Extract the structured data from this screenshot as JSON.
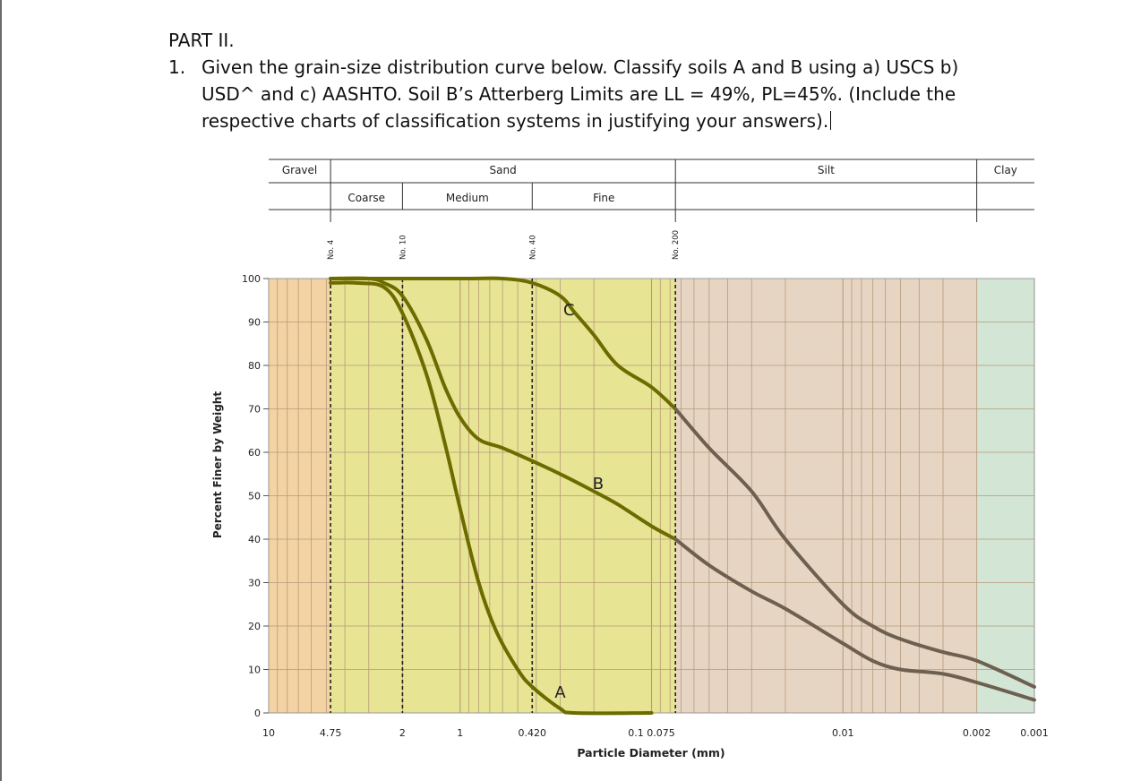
{
  "question": {
    "part": "PART II.",
    "number": "1.",
    "lines": [
      "Given the grain-size distribution curve below. Classify soils A and B using a) USCS b)",
      "USD^ and c) AASHTO. Soil B’s Atterberg Limits are LL = 49%, PL=45%. (Include the",
      "respective charts of classification systems in justifying your answers)."
    ]
  },
  "chart_data": {
    "type": "line",
    "title": "",
    "xlabel": "Particle Diameter (mm)",
    "ylabel": "Percent Finer by Weight",
    "x_scale": "log",
    "x_reversed": true,
    "xlim": [
      10,
      0.001
    ],
    "ylim": [
      0,
      100
    ],
    "grid": true,
    "x_tick_labels": [
      {
        "value": 10,
        "label": "10"
      },
      {
        "value": 4.75,
        "label": "4.75"
      },
      {
        "value": 2,
        "label": "2"
      },
      {
        "value": 1,
        "label": "1"
      },
      {
        "value": 0.42,
        "label": "0.420"
      },
      {
        "value": 0.1,
        "label": "0.1 0.075"
      },
      {
        "value": 0.01,
        "label": "0.01"
      },
      {
        "value": 0.002,
        "label": "0.002"
      },
      {
        "value": 0.001,
        "label": "0.001"
      }
    ],
    "y_ticks": [
      0,
      10,
      20,
      30,
      40,
      50,
      60,
      70,
      80,
      90,
      100
    ],
    "sieves": [
      {
        "label": "No. 4",
        "size": 4.75
      },
      {
        "label": "No. 10",
        "size": 2
      },
      {
        "label": "No. 40",
        "size": 0.42
      },
      {
        "label": "No. 200",
        "size": 0.075
      }
    ],
    "size_bands": [
      {
        "name": "Gravel",
        "from": 10,
        "to": 4.75,
        "color": "#f3d3a3"
      },
      {
        "name": "Sand",
        "from": 4.75,
        "to": 0.075,
        "color": "#e7e493"
      },
      {
        "name": "Silt",
        "from": 0.075,
        "to": 0.002,
        "color": "#e7d5c3"
      },
      {
        "name": "Clay",
        "from": 0.002,
        "to": 0.001,
        "color": "#d3e5d4"
      }
    ],
    "sand_subdivisions": [
      {
        "name": "Coarse",
        "from": 4.75,
        "to": 2
      },
      {
        "name": "Medium",
        "from": 2,
        "to": 0.42
      },
      {
        "name": "Fine",
        "from": 0.42,
        "to": 0.075
      }
    ],
    "series": [
      {
        "name": "A",
        "color": "#6b6b00",
        "points": [
          [
            4.75,
            99
          ],
          [
            3.5,
            99
          ],
          [
            2.5,
            98
          ],
          [
            2.0,
            92
          ],
          [
            1.5,
            78
          ],
          [
            1.2,
            62
          ],
          [
            1.0,
            47
          ],
          [
            0.8,
            30
          ],
          [
            0.65,
            19
          ],
          [
            0.5,
            10
          ],
          [
            0.42,
            6
          ],
          [
            0.3,
            1
          ],
          [
            0.25,
            0
          ],
          [
            0.1,
            0
          ]
        ]
      },
      {
        "name": "B",
        "color": "#6b6b00",
        "points": [
          [
            4.75,
            100
          ],
          [
            3.0,
            100
          ],
          [
            2.5,
            99
          ],
          [
            2.0,
            96
          ],
          [
            1.5,
            86
          ],
          [
            1.2,
            75
          ],
          [
            1.0,
            68
          ],
          [
            0.8,
            63
          ],
          [
            0.6,
            61
          ],
          [
            0.42,
            58
          ],
          [
            0.3,
            55
          ],
          [
            0.2,
            51
          ],
          [
            0.15,
            48
          ],
          [
            0.1,
            43
          ],
          [
            0.075,
            40
          ]
        ]
      },
      {
        "name": "B",
        "color": "#6e6050",
        "points": [
          [
            0.075,
            40
          ],
          [
            0.05,
            34
          ],
          [
            0.03,
            28
          ],
          [
            0.02,
            24
          ],
          [
            0.01,
            16
          ],
          [
            0.007,
            12
          ],
          [
            0.005,
            10
          ],
          [
            0.003,
            9
          ],
          [
            0.002,
            7
          ],
          [
            0.001,
            3
          ]
        ]
      },
      {
        "name": "C",
        "color": "#6b6b00",
        "points": [
          [
            4.75,
            100
          ],
          [
            1.0,
            100
          ],
          [
            0.6,
            100
          ],
          [
            0.42,
            99
          ],
          [
            0.3,
            96
          ],
          [
            0.25,
            92
          ],
          [
            0.2,
            87
          ],
          [
            0.15,
            80
          ],
          [
            0.1,
            75
          ],
          [
            0.075,
            70
          ]
        ]
      },
      {
        "name": "C",
        "color": "#6e6050",
        "points": [
          [
            0.075,
            70
          ],
          [
            0.05,
            61
          ],
          [
            0.03,
            51
          ],
          [
            0.02,
            40
          ],
          [
            0.01,
            25
          ],
          [
            0.007,
            20
          ],
          [
            0.005,
            17
          ],
          [
            0.003,
            14
          ],
          [
            0.002,
            12
          ],
          [
            0.001,
            6
          ]
        ]
      }
    ],
    "annotations": [
      {
        "text": "C",
        "x": 0.27,
        "y": 93
      },
      {
        "text": "B",
        "x": 0.19,
        "y": 53
      },
      {
        "text": "A",
        "x": 0.3,
        "y": 5
      }
    ]
  }
}
